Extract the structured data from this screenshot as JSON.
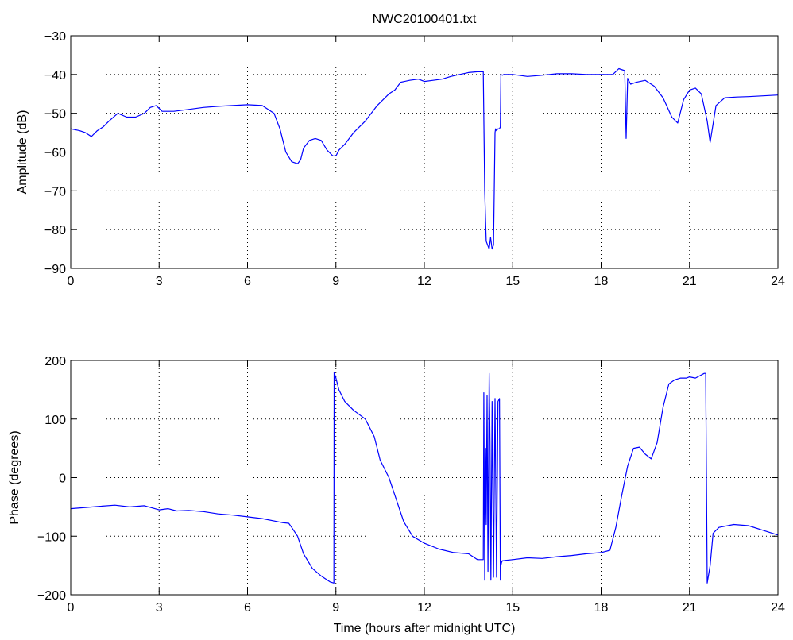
{
  "chart_data": [
    {
      "type": "line",
      "title": "NWC20100401.txt",
      "xlabel": "",
      "ylabel": "Amplitude (dB)",
      "xlim": [
        0,
        24
      ],
      "ylim": [
        -90,
        -30
      ],
      "xticks": [
        0,
        3,
        6,
        9,
        12,
        15,
        18,
        21,
        24
      ],
      "yticks": [
        -90,
        -80,
        -70,
        -60,
        -50,
        -40,
        -30
      ],
      "grid": true,
      "color": "#0000ff",
      "series": [
        {
          "x": [
            0,
            0.3,
            0.5,
            0.7,
            0.9,
            1.1,
            1.3,
            1.6,
            1.9,
            2.2,
            2.5,
            2.7,
            2.9,
            3.1,
            3.5,
            4,
            4.5,
            5,
            5.5,
            6,
            6.5,
            6.9,
            7.1,
            7.3,
            7.5,
            7.7,
            7.8,
            7.9,
            8.1,
            8.3,
            8.5,
            8.7,
            8.9,
            9.0,
            9.1,
            9.3,
            9.6,
            10,
            10.4,
            10.8,
            11.0,
            11.2,
            11.5,
            11.8,
            12,
            12.3,
            12.6,
            12.9,
            13.2,
            13.5,
            13.8,
            14.0,
            14.05,
            14.1,
            14.15,
            14.2,
            14.25,
            14.3,
            14.35,
            14.4,
            14.42,
            14.45,
            14.5,
            14.55,
            14.58,
            14.6,
            14.65,
            14.7,
            15,
            15.5,
            16,
            16.5,
            17,
            17.5,
            18,
            18.4,
            18.6,
            18.8,
            18.85,
            18.9,
            19.0,
            19.2,
            19.5,
            19.8,
            20.1,
            20.4,
            20.6,
            20.8,
            21.0,
            21.2,
            21.4,
            21.6,
            21.7,
            21.9,
            22.2,
            22.6,
            23,
            23.5,
            24
          ],
          "y": [
            -54,
            -54.5,
            -55,
            -56,
            -54.5,
            -53.5,
            -52,
            -50,
            -51,
            -51,
            -50,
            -48.5,
            -48,
            -49.5,
            -49.5,
            -49,
            -48.5,
            -48.2,
            -48,
            -47.8,
            -48,
            -50,
            -54,
            -60,
            -62.5,
            -63,
            -62,
            -59,
            -57,
            -56.5,
            -57,
            -59.5,
            -61,
            -61,
            -59.5,
            -58,
            -55,
            -52,
            -48,
            -45,
            -44,
            -42,
            -41.5,
            -41.2,
            -41.8,
            -41.5,
            -41.2,
            -40.5,
            -40,
            -39.5,
            -39.3,
            -39.3,
            -70,
            -83,
            -84,
            -85,
            -82,
            -85,
            -84,
            -55,
            -54,
            -54.5,
            -54,
            -54,
            -53.5,
            -40,
            -40.2,
            -40,
            -40,
            -40.5,
            -40.2,
            -39.8,
            -39.8,
            -40,
            -40,
            -40,
            -38.5,
            -39,
            -56.5,
            -41,
            -42.5,
            -42,
            -41.5,
            -43,
            -46,
            -51,
            -52.5,
            -46.5,
            -44,
            -43.5,
            -45,
            -52,
            -57.5,
            -48,
            -46,
            -45.8,
            -45.7,
            -45.5,
            -45.3
          ]
        }
      ]
    },
    {
      "type": "line",
      "title": "",
      "xlabel": "Time (hours after midnight UTC)",
      "ylabel": "Phase (degrees)",
      "xlim": [
        0,
        24
      ],
      "ylim": [
        -200,
        200
      ],
      "xticks": [
        0,
        3,
        6,
        9,
        12,
        15,
        18,
        21,
        24
      ],
      "yticks": [
        -200,
        -100,
        0,
        100,
        200
      ],
      "grid": true,
      "color": "#0000ff",
      "series": [
        {
          "x": [
            0,
            0.5,
            1,
            1.5,
            2,
            2.5,
            3,
            3.3,
            3.6,
            4,
            4.5,
            5,
            5.5,
            6,
            6.5,
            7,
            7.2,
            7.4,
            7.5,
            7.7,
            7.9,
            8.2,
            8.5,
            8.8,
            8.93,
            8.94,
            9.0,
            9.1,
            9.3,
            9.6,
            10.0,
            10.3,
            10.5,
            10.8,
            11.0,
            11.3,
            11.6,
            12.0,
            12.5,
            13,
            13.5,
            13.8,
            14.0,
            14.02,
            14.05,
            14.08,
            14.1,
            14.13,
            14.16,
            14.2,
            14.23,
            14.26,
            14.3,
            14.35,
            14.4,
            14.45,
            14.5,
            14.55,
            14.58,
            14.6,
            14.62,
            14.65,
            15,
            15.5,
            16,
            16.5,
            17,
            17.5,
            18,
            18.3,
            18.5,
            18.7,
            18.9,
            19.1,
            19.3,
            19.5,
            19.7,
            19.9,
            20.1,
            20.3,
            20.5,
            20.7,
            20.9,
            21.0,
            21.2,
            21.5,
            21.55,
            21.6,
            21.7,
            21.8,
            22.0,
            22.5,
            23,
            23.5,
            24
          ],
          "y": [
            -53,
            -51,
            -49,
            -47,
            -50,
            -48,
            -55,
            -53,
            -57,
            -56,
            -58,
            -62,
            -64,
            -67,
            -70,
            -75,
            -77,
            -78,
            -85,
            -100,
            -130,
            -155,
            -168,
            -178,
            -180,
            180,
            170,
            150,
            130,
            115,
            100,
            70,
            30,
            0,
            -30,
            -75,
            -100,
            -112,
            -122,
            -128,
            -130,
            -140,
            -140,
            145,
            -175,
            50,
            -80,
            140,
            -160,
            178,
            60,
            -175,
            130,
            -170,
            135,
            -170,
            130,
            135,
            -175,
            -150,
            -145,
            -142,
            -140,
            -137,
            -138,
            -135,
            -133,
            -130,
            -128,
            -124,
            -85,
            -30,
            20,
            50,
            52,
            40,
            32,
            60,
            120,
            160,
            167,
            170,
            170,
            172,
            170,
            178,
            178,
            -180,
            -150,
            -95,
            -85,
            -80,
            -82,
            -90,
            -98
          ]
        }
      ]
    }
  ]
}
